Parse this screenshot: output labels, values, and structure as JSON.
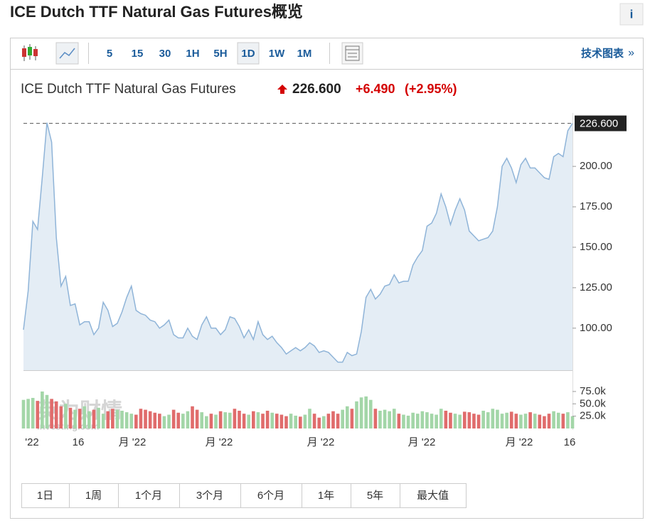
{
  "header": {
    "title": "ICE Dutch TTF Natural Gas Futures概览",
    "info": "i"
  },
  "toolbar": {
    "intervals": [
      "5",
      "15",
      "30",
      "1H",
      "5H",
      "1D",
      "1W",
      "1M"
    ],
    "selected": "1D",
    "link": "技术图表",
    "link_arrow": "»"
  },
  "quote": {
    "name": "ICE Dutch TTF Natural Gas Futures",
    "change": "+6.490",
    "change_pct": "(+2.95%)"
  },
  "chart_data": {
    "type": "line",
    "series": [
      {
        "name": "ICE Dutch TTF Natural Gas Futures",
        "color": "#8fb4d8",
        "values": [
          99,
          123,
          166,
          161,
          193,
          227,
          215,
          156,
          126,
          132,
          114,
          115,
          102,
          104,
          104,
          96,
          100,
          116,
          111,
          101,
          103,
          110,
          119,
          126,
          111,
          109,
          108,
          105,
          104,
          100,
          102,
          105,
          96,
          94,
          94,
          100,
          95,
          93,
          102,
          107,
          100,
          100,
          96,
          99,
          107,
          106,
          101,
          94,
          99,
          93,
          104,
          96,
          93,
          95,
          91,
          88,
          84,
          86,
          88,
          86,
          88,
          91,
          89,
          85,
          86,
          85,
          82,
          79,
          79,
          85,
          83,
          84,
          98,
          119,
          124,
          118,
          121,
          126,
          127,
          133,
          128,
          129,
          129,
          139,
          144,
          148,
          163,
          165,
          171,
          183,
          175,
          164,
          173,
          180,
          173,
          160,
          157,
          154,
          155,
          156,
          160,
          175,
          200,
          205,
          199,
          190,
          201,
          205,
          199,
          199,
          196,
          193,
          192,
          206,
          208,
          206,
          222,
          226.6
        ]
      }
    ],
    "ylim": [
      74,
      233
    ],
    "yticks": [
      {
        "value": 100,
        "label": "100.00"
      },
      {
        "value": 125,
        "label": "125.00"
      },
      {
        "value": 150,
        "label": "150.00"
      },
      {
        "value": 175,
        "label": "175.00"
      },
      {
        "value": 200,
        "label": "200.00"
      }
    ],
    "last_value": 226.6,
    "last_label": "226.600",
    "volume": {
      "values": [
        58000,
        60000,
        62000,
        56000,
        75000,
        68000,
        60000,
        55000,
        45000,
        50000,
        42000,
        38000,
        40000,
        45000,
        35000,
        38000,
        42000,
        30000,
        35000,
        40000,
        38000,
        36000,
        33000,
        30000,
        28000,
        40000,
        38000,
        35000,
        32000,
        30000,
        25000,
        28000,
        38000,
        32000,
        30000,
        35000,
        45000,
        38000,
        33000,
        25000,
        30000,
        28000,
        35000,
        33000,
        32000,
        40000,
        36000,
        30000,
        28000,
        35000,
        33000,
        30000,
        36000,
        32000,
        30000,
        28000,
        25000,
        30000,
        26000,
        24000,
        28000,
        40000,
        30000,
        22000,
        25000,
        30000,
        35000,
        30000,
        38000,
        45000,
        40000,
        55000,
        63000,
        65000,
        58000,
        40000,
        36000,
        38000,
        35000,
        40000,
        30000,
        28000,
        26000,
        32000,
        30000,
        35000,
        33000,
        30000,
        28000,
        40000,
        36000,
        32000,
        30000,
        28000,
        34000,
        33000,
        30000,
        28000,
        36000,
        33000,
        40000,
        38000,
        30000,
        32000,
        34000,
        30000,
        28000,
        30000,
        33000,
        30000,
        28000,
        25000,
        30000,
        35000,
        32000,
        30000,
        33000,
        25000
      ],
      "up_color": "#a3d6a8",
      "down_color": "#e06c6c",
      "ylim": [
        0,
        85000
      ],
      "yticks": [
        {
          "value": 25000,
          "label": "25.0k"
        },
        {
          "value": 50000,
          "label": "50.0k"
        },
        {
          "value": 75000,
          "label": "75.0k"
        }
      ]
    },
    "x_labels": [
      "'22",
      "16",
      "月 '22",
      "月 '22",
      "月 '22",
      "月 '22",
      "月 '22",
      "16"
    ]
  },
  "watermark": {
    "brand": "英为财情",
    "site": "Investing.com"
  },
  "range_buttons": [
    "1日",
    "1周",
    "1个月",
    "3个月",
    "6个月",
    "1年",
    "5年",
    "最大值"
  ]
}
